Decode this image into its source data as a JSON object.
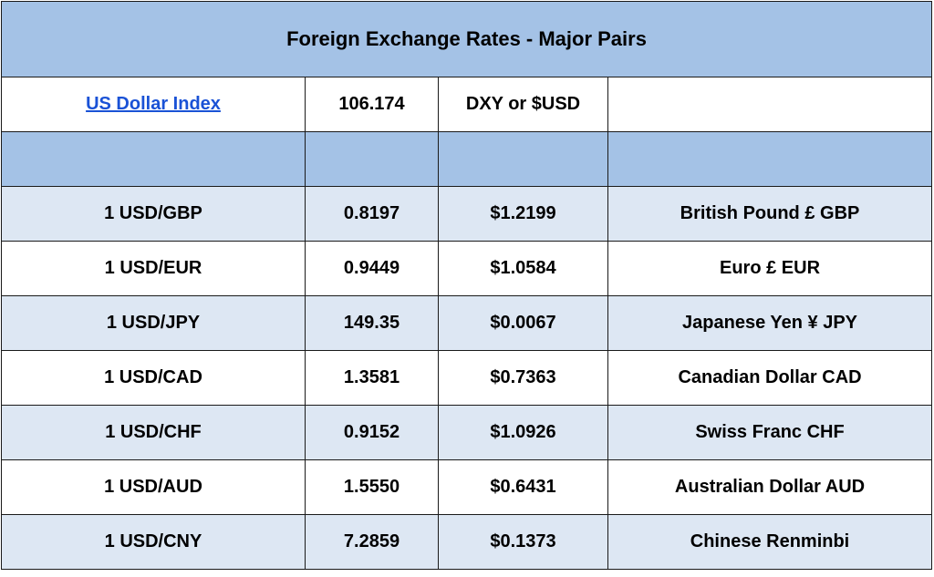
{
  "title": "Foreign Exchange Rates - Major Pairs",
  "index_row": {
    "link_label": "US Dollar Index",
    "value": "106.174",
    "symbol": "DXY or $USD",
    "extra": ""
  },
  "rows": [
    {
      "pair": "1 USD/GBP",
      "rate": "0.8197",
      "usd_value": "$1.2199",
      "currency": "British Pound £ GBP"
    },
    {
      "pair": "1 USD/EUR",
      "rate": "0.9449",
      "usd_value": "$1.0584",
      "currency": "Euro £ EUR"
    },
    {
      "pair": "1 USD/JPY",
      "rate": "149.35",
      "usd_value": "$0.0067",
      "currency": "Japanese Yen ¥ JPY"
    },
    {
      "pair": "1 USD/CAD",
      "rate": "1.3581",
      "usd_value": "$0.7363",
      "currency": "Canadian Dollar CAD"
    },
    {
      "pair": "1 USD/CHF",
      "rate": "0.9152",
      "usd_value": "$1.0926",
      "currency": "Swiss Franc CHF"
    },
    {
      "pair": "1 USD/AUD",
      "rate": "1.5550",
      "usd_value": "$0.6431",
      "currency": "Australian Dollar AUD"
    },
    {
      "pair": "1 USD/CNY",
      "rate": "7.2859",
      "usd_value": "$0.1373",
      "currency": "Chinese Renminbi"
    }
  ],
  "colors": {
    "header_fill": "#a4c2e6",
    "alt_row_fill": "#dde7f3",
    "link": "#1a52d6"
  }
}
